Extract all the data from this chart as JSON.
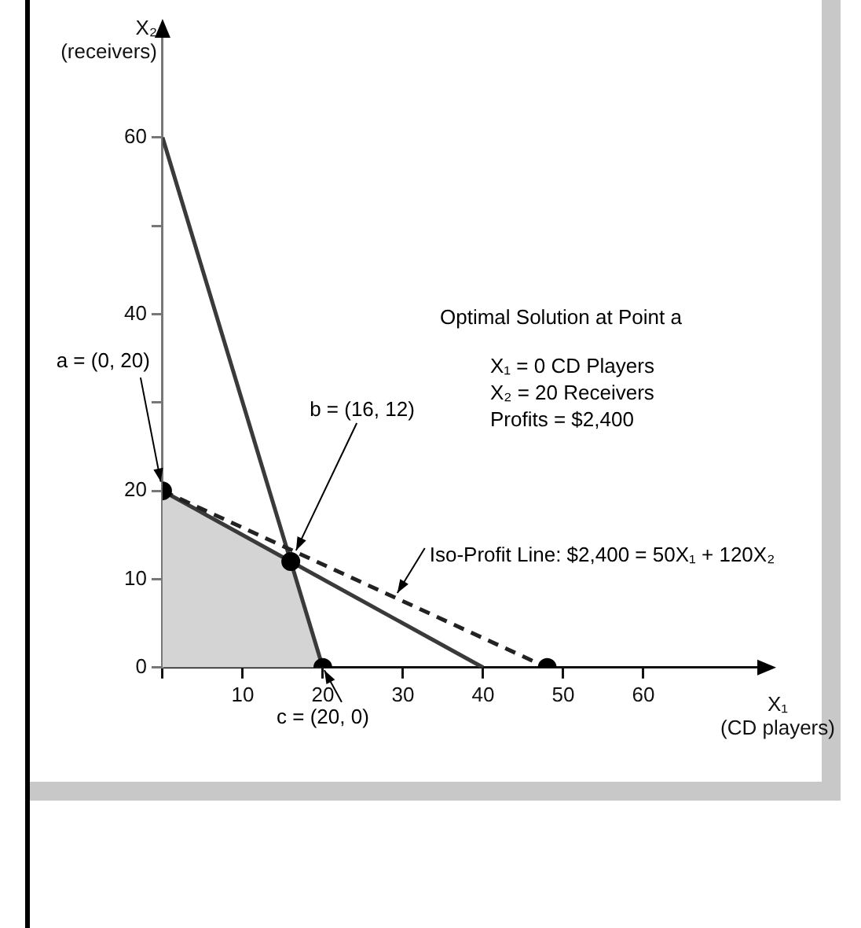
{
  "chart_data": {
    "type": "line",
    "xlabel": "X₁ (CD players)",
    "ylabel": "X₂ (receivers)",
    "xlim": [
      0,
      75
    ],
    "ylim": [
      0,
      72
    ],
    "xticks": [
      {
        "value": 0,
        "label": null
      },
      10,
      20,
      30,
      40,
      50,
      60
    ],
    "yticks": [
      0,
      10,
      20,
      {
        "value": 30,
        "label": null
      },
      40,
      {
        "value": 50,
        "label": null
      },
      60
    ],
    "grid": false,
    "legend": false,
    "series": [
      {
        "type": "area",
        "color": "#d4d4d4",
        "x": [
          0,
          16,
          20
        ],
        "values": [
          20,
          12,
          0
        ],
        "marker": "none"
      },
      {
        "color": "#3a3a3a",
        "x": [
          0,
          20
        ],
        "values": [
          60,
          0
        ],
        "marker": "none",
        "line_style": "solid"
      },
      {
        "color": "#3a3a3a",
        "x": [
          0,
          40
        ],
        "values": [
          20,
          0
        ],
        "marker": "none",
        "line_style": "solid"
      },
      {
        "color": "#222222",
        "x": [
          0,
          48
        ],
        "values": [
          20,
          0
        ],
        "marker": "none",
        "line_style": "dashed"
      },
      {
        "type": "scatter",
        "color": "#000000",
        "x": [
          0,
          16,
          20,
          48
        ],
        "values": [
          20,
          12,
          0,
          0
        ],
        "marker": "circle"
      }
    ],
    "annotations": [
      "Optimal Solution at Point a",
      "X₁ = 0 CD Players",
      "X₂ = 20 Receivers",
      "Profits = $2,400",
      {
        "text": "a = (0, 20)",
        "x": 0,
        "y": 20
      },
      {
        "text": "b = (16, 12)",
        "x": 16,
        "y": 12
      },
      {
        "text": "c = (20, 0)",
        "x": 20,
        "y": 0
      },
      {
        "text": "Iso-Profit Line: $2,400 = 50X₁ + 120X₂",
        "x": 29,
        "y": 8
      }
    ]
  }
}
